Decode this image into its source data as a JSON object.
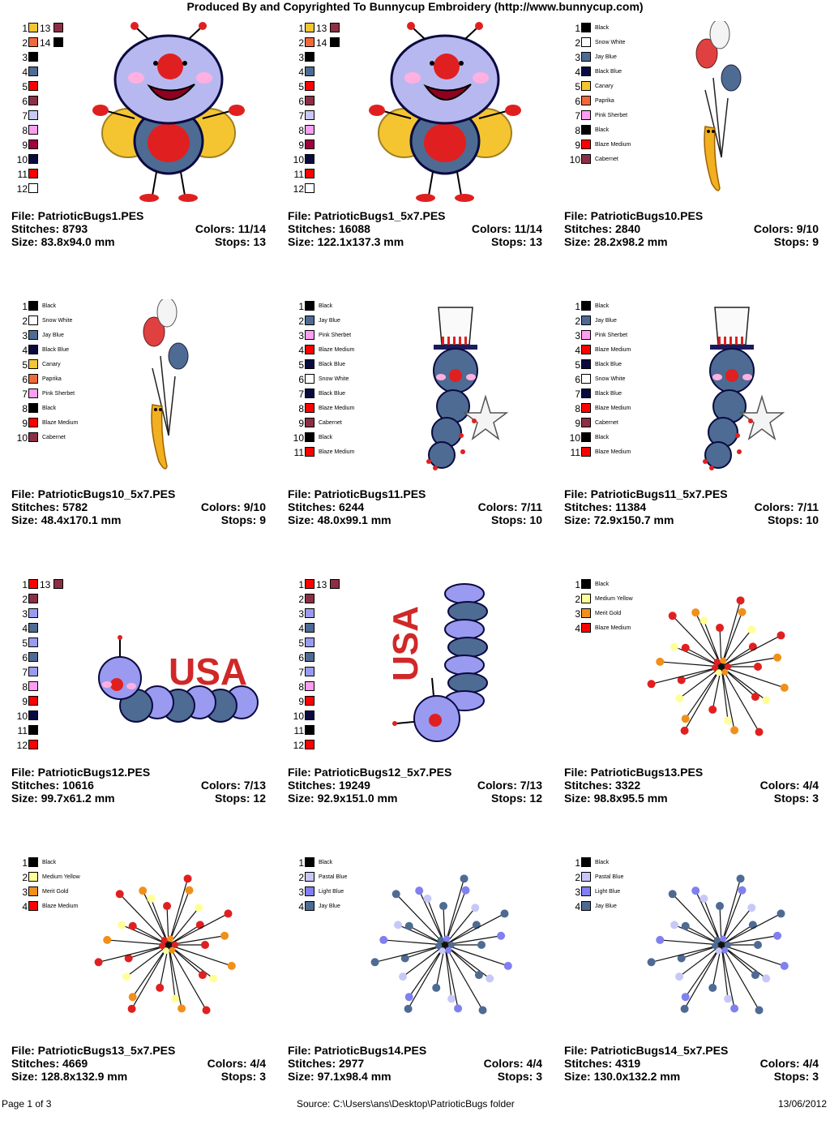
{
  "header": {
    "title": "Produced By and Copyrighted To Bunnycup Embroidery (http://www.bunnycup.com)"
  },
  "designs": [
    {
      "file": "File: PatrioticBugs1.PES",
      "stitches": "Stitches: 8793",
      "colors": "Colors: 11/14",
      "size": "Size: 83.8x94.0 mm",
      "stops": "Stops: 13",
      "art": "bug",
      "palette": [
        {
          "n": "1",
          "c": "#f5c531",
          "n2": "13",
          "c2": "#8b2f45"
        },
        {
          "n": "2",
          "c": "#ee6a3c",
          "n2": "14",
          "c2": "#000000"
        },
        {
          "n": "3",
          "c": "#000000"
        },
        {
          "n": "4",
          "c": "#4e6b93"
        },
        {
          "n": "5",
          "c": "#ff0000"
        },
        {
          "n": "6",
          "c": "#8b2f45"
        },
        {
          "n": "7",
          "c": "#c8c8f8"
        },
        {
          "n": "8",
          "c": "#ff9ef0"
        },
        {
          "n": "9",
          "c": "#a00040"
        },
        {
          "n": "10",
          "c": "#0a0a40"
        },
        {
          "n": "11",
          "c": "#ff0000"
        },
        {
          "n": "12",
          "c": "#ffffff"
        }
      ]
    },
    {
      "file": "File: PatrioticBugs1_5x7.PES",
      "stitches": "Stitches: 16088",
      "colors": "Colors: 11/14",
      "size": "Size: 122.1x137.3 mm",
      "stops": "Stops: 13",
      "art": "bug",
      "palette": [
        {
          "n": "1",
          "c": "#f5c531",
          "n2": "13",
          "c2": "#8b2f45"
        },
        {
          "n": "2",
          "c": "#ee6a3c",
          "n2": "14",
          "c2": "#000000"
        },
        {
          "n": "3",
          "c": "#000000"
        },
        {
          "n": "4",
          "c": "#4e6b93"
        },
        {
          "n": "5",
          "c": "#ff0000"
        },
        {
          "n": "6",
          "c": "#8b2f45"
        },
        {
          "n": "7",
          "c": "#c8c8f8"
        },
        {
          "n": "8",
          "c": "#ff9ef0"
        },
        {
          "n": "9",
          "c": "#a00040"
        },
        {
          "n": "10",
          "c": "#0a0a40"
        },
        {
          "n": "11",
          "c": "#ff0000"
        },
        {
          "n": "12",
          "c": "#ffffff"
        }
      ]
    },
    {
      "file": "File: PatrioticBugs10.PES",
      "stitches": "Stitches: 2840",
      "colors": "Colors: 9/10",
      "size": "Size: 28.2x98.2 mm",
      "stops": "Stops: 9",
      "art": "balloon",
      "palette": [
        {
          "n": "1",
          "c": "#000000",
          "name": "Black"
        },
        {
          "n": "2",
          "c": "#ffffff",
          "name": "Snow White"
        },
        {
          "n": "3",
          "c": "#4e6b93",
          "name": "Jay Blue"
        },
        {
          "n": "4",
          "c": "#0a0a40",
          "name": "Black Blue"
        },
        {
          "n": "5",
          "c": "#f5c531",
          "name": "Canary"
        },
        {
          "n": "6",
          "c": "#ee6a3c",
          "name": "Paprika"
        },
        {
          "n": "7",
          "c": "#ff9ef0",
          "name": "Pink Sherbet"
        },
        {
          "n": "8",
          "c": "#000000",
          "name": "Black"
        },
        {
          "n": "9",
          "c": "#ff0000",
          "name": "Blaze Medium"
        },
        {
          "n": "10",
          "c": "#8b2f45",
          "name": "Cabernet"
        }
      ]
    },
    {
      "file": "File: PatrioticBugs10_5x7.PES",
      "stitches": "Stitches: 5782",
      "colors": "Colors: 9/10",
      "size": "Size: 48.4x170.1 mm",
      "stops": "Stops: 9",
      "art": "balloon",
      "palette": [
        {
          "n": "1",
          "c": "#000000",
          "name": "Black"
        },
        {
          "n": "2",
          "c": "#ffffff",
          "name": "Snow White"
        },
        {
          "n": "3",
          "c": "#4e6b93",
          "name": "Jay Blue"
        },
        {
          "n": "4",
          "c": "#0a0a40",
          "name": "Black Blue"
        },
        {
          "n": "5",
          "c": "#f5c531",
          "name": "Canary"
        },
        {
          "n": "6",
          "c": "#ee6a3c",
          "name": "Paprika"
        },
        {
          "n": "7",
          "c": "#ff9ef0",
          "name": "Pink Sherbet"
        },
        {
          "n": "8",
          "c": "#000000",
          "name": "Black"
        },
        {
          "n": "9",
          "c": "#ff0000",
          "name": "Blaze Medium"
        },
        {
          "n": "10",
          "c": "#8b2f45",
          "name": "Cabernet"
        }
      ]
    },
    {
      "file": "File: PatrioticBugs11.PES",
      "stitches": "Stitches: 6244",
      "colors": "Colors: 7/11",
      "size": "Size: 48.0x99.1 mm",
      "stops": "Stops: 10",
      "art": "hatbug",
      "palette": [
        {
          "n": "1",
          "c": "#000000",
          "name": "Black"
        },
        {
          "n": "2",
          "c": "#4e6b93",
          "name": "Jay Blue"
        },
        {
          "n": "3",
          "c": "#ff9ef0",
          "name": "Pink Sherbet"
        },
        {
          "n": "4",
          "c": "#ff0000",
          "name": "Blaze Medium"
        },
        {
          "n": "5",
          "c": "#0a0a40",
          "name": "Black Blue"
        },
        {
          "n": "6",
          "c": "#ffffff",
          "name": "Snow White"
        },
        {
          "n": "7",
          "c": "#0a0a40",
          "name": "Black Blue"
        },
        {
          "n": "8",
          "c": "#ff0000",
          "name": "Blaze Medium"
        },
        {
          "n": "9",
          "c": "#8b2f45",
          "name": "Cabernet"
        },
        {
          "n": "10",
          "c": "#000000",
          "name": "Black"
        },
        {
          "n": "11",
          "c": "#ff0000",
          "name": "Blaze Medium"
        }
      ]
    },
    {
      "file": "File: PatrioticBugs11_5x7.PES",
      "stitches": "Stitches: 11384",
      "colors": "Colors: 7/11",
      "size": "Size: 72.9x150.7 mm",
      "stops": "Stops: 10",
      "art": "hatbug",
      "palette": [
        {
          "n": "1",
          "c": "#000000",
          "name": "Black"
        },
        {
          "n": "2",
          "c": "#4e6b93",
          "name": "Jay Blue"
        },
        {
          "n": "3",
          "c": "#ff9ef0",
          "name": "Pink Sherbet"
        },
        {
          "n": "4",
          "c": "#ff0000",
          "name": "Blaze Medium"
        },
        {
          "n": "5",
          "c": "#0a0a40",
          "name": "Black Blue"
        },
        {
          "n": "6",
          "c": "#ffffff",
          "name": "Snow White"
        },
        {
          "n": "7",
          "c": "#0a0a40",
          "name": "Black Blue"
        },
        {
          "n": "8",
          "c": "#ff0000",
          "name": "Blaze Medium"
        },
        {
          "n": "9",
          "c": "#8b2f45",
          "name": "Cabernet"
        },
        {
          "n": "10",
          "c": "#000000",
          "name": "Black"
        },
        {
          "n": "11",
          "c": "#ff0000",
          "name": "Blaze Medium"
        }
      ]
    },
    {
      "file": "File: PatrioticBugs12.PES",
      "stitches": "Stitches: 10616",
      "colors": "Colors: 7/13",
      "size": "Size: 99.7x61.2 mm",
      "stops": "Stops: 12",
      "art": "usa",
      "palette": [
        {
          "n": "1",
          "c": "#ff0000",
          "n2": "13",
          "c2": "#8b2f45"
        },
        {
          "n": "2",
          "c": "#8b2f45"
        },
        {
          "n": "3",
          "c": "#9a9af0"
        },
        {
          "n": "4",
          "c": "#4e6b93"
        },
        {
          "n": "5",
          "c": "#9a9af0"
        },
        {
          "n": "6",
          "c": "#4e6b93"
        },
        {
          "n": "7",
          "c": "#9a9af0"
        },
        {
          "n": "8",
          "c": "#ff9ef0"
        },
        {
          "n": "9",
          "c": "#ff0000"
        },
        {
          "n": "10",
          "c": "#0a0a40"
        },
        {
          "n": "11",
          "c": "#000000"
        },
        {
          "n": "12",
          "c": "#ff0000"
        }
      ]
    },
    {
      "file": "File: PatrioticBugs12_5x7.PES",
      "stitches": "Stitches: 19249",
      "colors": "Colors: 7/13",
      "size": "Size: 92.9x151.0 mm",
      "stops": "Stops: 12",
      "art": "usa_v",
      "palette": [
        {
          "n": "1",
          "c": "#ff0000",
          "n2": "13",
          "c2": "#8b2f45"
        },
        {
          "n": "2",
          "c": "#8b2f45"
        },
        {
          "n": "3",
          "c": "#9a9af0"
        },
        {
          "n": "4",
          "c": "#4e6b93"
        },
        {
          "n": "5",
          "c": "#9a9af0"
        },
        {
          "n": "6",
          "c": "#4e6b93"
        },
        {
          "n": "7",
          "c": "#9a9af0"
        },
        {
          "n": "8",
          "c": "#ff9ef0"
        },
        {
          "n": "9",
          "c": "#ff0000"
        },
        {
          "n": "10",
          "c": "#0a0a40"
        },
        {
          "n": "11",
          "c": "#000000"
        },
        {
          "n": "12",
          "c": "#ff0000"
        }
      ]
    },
    {
      "file": "File: PatrioticBugs13.PES",
      "stitches": "Stitches: 3322",
      "colors": "Colors: 4/4",
      "size": "Size: 98.8x95.5 mm",
      "stops": "Stops: 3",
      "art": "burst_warm",
      "palette": [
        {
          "n": "1",
          "c": "#000000",
          "name": "Black"
        },
        {
          "n": "2",
          "c": "#ffff99",
          "name": "Medium Yellow"
        },
        {
          "n": "3",
          "c": "#f0901a",
          "name": "Merit Gold"
        },
        {
          "n": "4",
          "c": "#ff0000",
          "name": "Blaze Medium"
        }
      ]
    },
    {
      "file": "File: PatrioticBugs13_5x7.PES",
      "stitches": "Stitches: 4669",
      "colors": "Colors: 4/4",
      "size": "Size: 128.8x132.9 mm",
      "stops": "Stops: 3",
      "art": "burst_warm",
      "palette": [
        {
          "n": "1",
          "c": "#000000",
          "name": "Black"
        },
        {
          "n": "2",
          "c": "#ffff99",
          "name": "Medium Yellow"
        },
        {
          "n": "3",
          "c": "#f0901a",
          "name": "Merit Gold"
        },
        {
          "n": "4",
          "c": "#ff0000",
          "name": "Blaze Medium"
        }
      ]
    },
    {
      "file": "File: PatrioticBugs14.PES",
      "stitches": "Stitches: 2977",
      "colors": "Colors: 4/4",
      "size": "Size: 97.1x98.4 mm",
      "stops": "Stops: 3",
      "art": "burst_cool",
      "palette": [
        {
          "n": "1",
          "c": "#000000",
          "name": "Black"
        },
        {
          "n": "2",
          "c": "#c8c8f8",
          "name": "Pastal Blue"
        },
        {
          "n": "3",
          "c": "#8080f0",
          "name": "Light Blue"
        },
        {
          "n": "4",
          "c": "#4e6b93",
          "name": "Jay Blue"
        }
      ]
    },
    {
      "file": "File: PatrioticBugs14_5x7.PES",
      "stitches": "Stitches: 4319",
      "colors": "Colors: 4/4",
      "size": "Size: 130.0x132.2 mm",
      "stops": "Stops: 3",
      "art": "burst_cool",
      "palette": [
        {
          "n": "1",
          "c": "#000000",
          "name": "Black"
        },
        {
          "n": "2",
          "c": "#c8c8f8",
          "name": "Pastal Blue"
        },
        {
          "n": "3",
          "c": "#8080f0",
          "name": "Light Blue"
        },
        {
          "n": "4",
          "c": "#4e6b93",
          "name": "Jay Blue"
        }
      ]
    }
  ],
  "footer": {
    "page": "Page 1 of 3",
    "source": "Source: C:\\Users\\ans\\Desktop\\PatrioticBugs folder",
    "date": "13/06/2012"
  }
}
